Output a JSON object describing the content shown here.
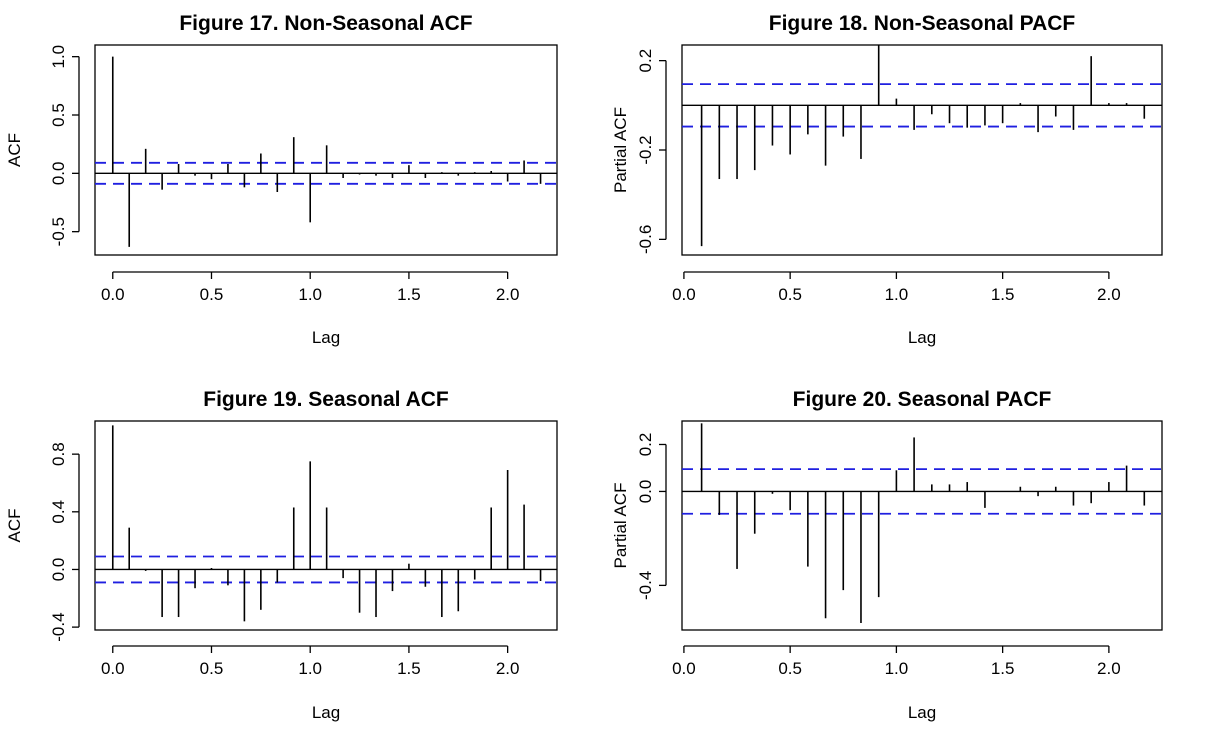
{
  "colors": {
    "confidence_band": "#1f1fe0",
    "spike": "#000000"
  },
  "chart_data": [
    {
      "type": "bar",
      "title": "Figure 17. Non-Seasonal ACF",
      "xlabel": "Lag",
      "ylabel": "ACF",
      "xlim": [
        -0.09,
        2.25
      ],
      "ylim": [
        -0.7,
        1.1
      ],
      "xticks": [
        "0.0",
        "0.5",
        "1.0",
        "1.5",
        "2.0"
      ],
      "yticks": [
        "-0.5",
        "0.0",
        "0.5",
        "1.0"
      ],
      "ci": 0.09,
      "lags": [
        0,
        0.0833,
        0.1667,
        0.25,
        0.3333,
        0.4167,
        0.5,
        0.5833,
        0.6667,
        0.75,
        0.8333,
        0.9167,
        1.0,
        1.0833,
        1.1667,
        1.25,
        1.3333,
        1.4167,
        1.5,
        1.5833,
        1.6667,
        1.75,
        1.8333,
        1.9167,
        2.0,
        2.0833,
        2.1667
      ],
      "values": [
        1.0,
        -0.63,
        0.21,
        -0.14,
        0.08,
        -0.02,
        -0.05,
        0.08,
        -0.12,
        0.17,
        -0.16,
        0.31,
        -0.42,
        0.24,
        -0.04,
        -0.01,
        -0.02,
        -0.04,
        0.07,
        -0.04,
        0.01,
        -0.02,
        0.01,
        0.02,
        -0.07,
        0.11,
        -0.09
      ]
    },
    {
      "type": "bar",
      "title": "Figure 18. Non-Seasonal PACF",
      "xlabel": "Lag",
      "ylabel": "Partial ACF",
      "xlim": [
        -0.009,
        2.25
      ],
      "ylim": [
        -0.67,
        0.27
      ],
      "xticks": [
        "0.0",
        "0.5",
        "1.0",
        "1.5",
        "2.0"
      ],
      "yticks": [
        "-0.6",
        "-0.2",
        "0.2"
      ],
      "ci": 0.095,
      "lags": [
        0.0833,
        0.1667,
        0.25,
        0.3333,
        0.4167,
        0.5,
        0.5833,
        0.6667,
        0.75,
        0.8333,
        0.9167,
        1.0,
        1.0833,
        1.1667,
        1.25,
        1.3333,
        1.4167,
        1.5,
        1.5833,
        1.6667,
        1.75,
        1.8333,
        1.9167,
        2.0,
        2.0833,
        2.1667
      ],
      "values": [
        -0.63,
        -0.33,
        -0.33,
        -0.29,
        -0.18,
        -0.22,
        -0.13,
        -0.27,
        -0.14,
        -0.24,
        0.27,
        0.03,
        -0.11,
        -0.04,
        -0.08,
        -0.1,
        -0.09,
        -0.08,
        0.01,
        -0.12,
        -0.05,
        -0.11,
        0.22,
        0.01,
        0.01,
        -0.06
      ]
    },
    {
      "type": "bar",
      "title": "Figure 19. Seasonal ACF",
      "xlabel": "Lag",
      "ylabel": "ACF",
      "xlim": [
        -0.09,
        2.25
      ],
      "ylim": [
        -0.42,
        1.03
      ],
      "xticks": [
        "0.0",
        "0.5",
        "1.0",
        "1.5",
        "2.0"
      ],
      "yticks": [
        "-0.4",
        "0.0",
        "0.4",
        "0.8"
      ],
      "ci": 0.09,
      "lags": [
        0,
        0.0833,
        0.1667,
        0.25,
        0.3333,
        0.4167,
        0.5,
        0.5833,
        0.6667,
        0.75,
        0.8333,
        0.9167,
        1.0,
        1.0833,
        1.1667,
        1.25,
        1.3333,
        1.4167,
        1.5,
        1.5833,
        1.6667,
        1.75,
        1.8333,
        1.9167,
        2.0,
        2.0833,
        2.1667
      ],
      "values": [
        1.0,
        0.29,
        -0.01,
        -0.33,
        -0.33,
        -0.13,
        0.01,
        -0.11,
        -0.36,
        -0.28,
        -0.09,
        0.43,
        0.75,
        0.43,
        -0.06,
        -0.3,
        -0.33,
        -0.15,
        0.04,
        -0.12,
        -0.33,
        -0.29,
        -0.07,
        0.43,
        0.69,
        0.45,
        -0.08
      ]
    },
    {
      "type": "bar",
      "title": "Figure 20. Seasonal PACF",
      "xlabel": "Lag",
      "ylabel": "Partial ACF",
      "xlim": [
        -0.009,
        2.25
      ],
      "ylim": [
        -0.59,
        0.3
      ],
      "xticks": [
        "0.0",
        "0.5",
        "1.0",
        "1.5",
        "2.0"
      ],
      "yticks": [
        "-0.4",
        "0.0",
        "0.2"
      ],
      "ci": 0.095,
      "lags": [
        0.0833,
        0.1667,
        0.25,
        0.3333,
        0.4167,
        0.5,
        0.5833,
        0.6667,
        0.75,
        0.8333,
        0.9167,
        1.0,
        1.0833,
        1.1667,
        1.25,
        1.3333,
        1.4167,
        1.5,
        1.5833,
        1.6667,
        1.75,
        1.8333,
        1.9167,
        2.0,
        2.0833,
        2.1667
      ],
      "values": [
        0.29,
        -0.1,
        -0.33,
        -0.18,
        -0.01,
        -0.08,
        -0.32,
        -0.54,
        -0.42,
        -0.56,
        -0.45,
        0.09,
        0.23,
        0.03,
        0.03,
        0.04,
        -0.07,
        0.0,
        0.02,
        -0.02,
        0.02,
        -0.06,
        -0.05,
        0.04,
        0.11,
        -0.06
      ]
    }
  ]
}
